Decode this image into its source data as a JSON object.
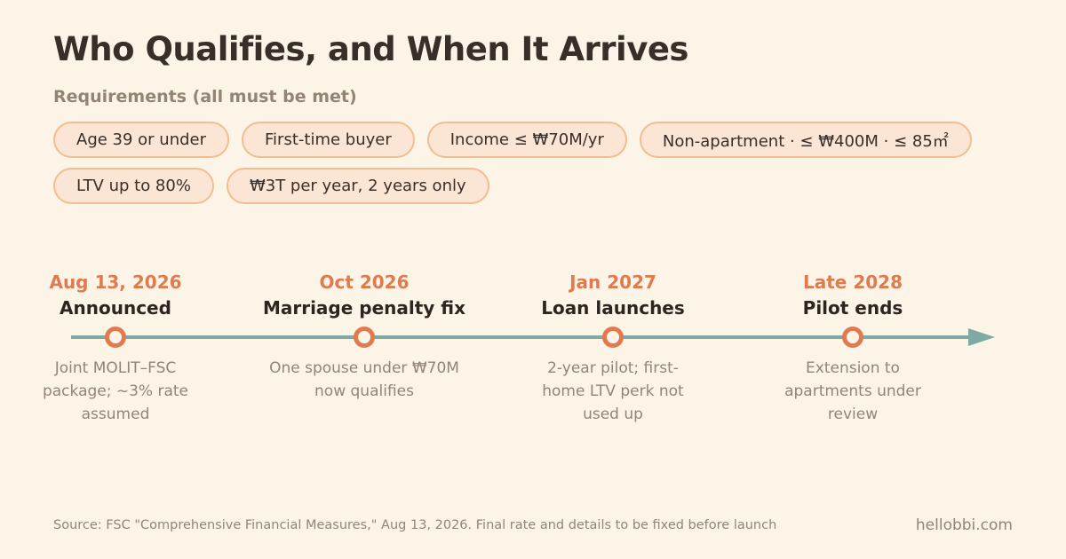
{
  "header": {
    "title": "Who Qualifies, and When It Arrives",
    "requirements_label": "Requirements (all must be met)"
  },
  "requirements": [
    "Age 39 or under",
    "First-time buyer",
    "Income ≤ ₩70M/yr",
    "Non-apartment · ≤ ₩400M · ≤ 85㎡",
    "LTV up to 80%",
    "₩3T per year, 2 years only"
  ],
  "timeline": {
    "milestones": [
      {
        "date": "Aug 13, 2026",
        "title": "Announced",
        "description": "Joint MOLIT–FSC package; ~3% rate assumed"
      },
      {
        "date": "Oct 2026",
        "title": "Marriage penalty fix",
        "description": "One spouse under ₩70M now qualifies"
      },
      {
        "date": "Jan 2027",
        "title": "Loan launches",
        "description": "2-year pilot; first-home LTV perk not used up"
      },
      {
        "date": "Late 2028",
        "title": "Pilot ends",
        "description": "Extension to apartments under review"
      }
    ]
  },
  "footer": {
    "source": "Source: FSC \"Comprehensive Financial Measures,\" Aug 13, 2026. Final rate and details to be fixed before launch",
    "site": "hellobbi.com"
  },
  "colors": {
    "background": "#fdf4e8",
    "accent": "#e07b4f",
    "timeline_line": "#7fa9a3",
    "pill_fill": "#fbe5d4",
    "pill_border": "#f2bd92"
  }
}
